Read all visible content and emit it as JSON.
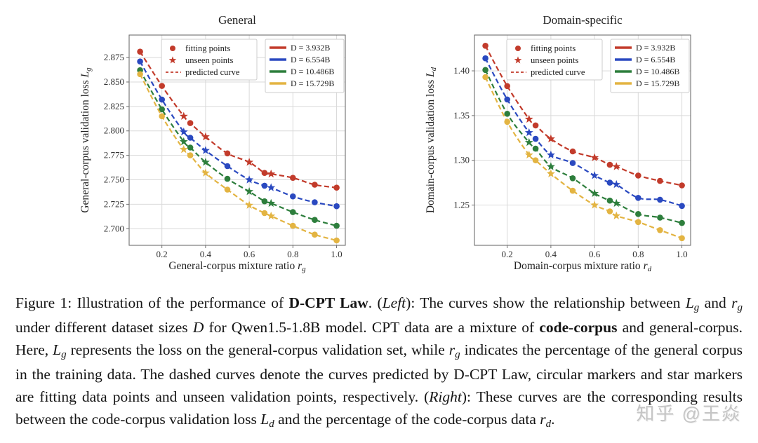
{
  "watermark": {
    "text": "知乎 @王焱"
  },
  "legend": {
    "marker_items": [
      {
        "label": "fitting points",
        "glyph": "circle"
      },
      {
        "label": "unseen points",
        "glyph": "star"
      },
      {
        "label": "predicted curve",
        "glyph": "dashed-line"
      }
    ]
  },
  "chart_data": [
    {
      "type": "line",
      "title": "General",
      "xlabel": {
        "prefix": "General-corpus mixture ratio ",
        "var": "r",
        "sub": "g"
      },
      "ylabel": {
        "prefix": "General-corpus validation loss ",
        "var": "L",
        "sub": "g"
      },
      "xlim": [
        0.05,
        1.04
      ],
      "ylim": [
        2.683,
        2.898
      ],
      "xticks": [
        0.2,
        0.4,
        0.6,
        0.8,
        1.0
      ],
      "yticks": [
        2.7,
        2.725,
        2.75,
        2.775,
        2.8,
        2.825,
        2.85,
        2.875
      ],
      "ytick_decimals": 3,
      "grid": true,
      "legend_position": "top",
      "x": [
        0.1,
        0.2,
        0.3,
        0.33,
        0.4,
        0.5,
        0.6,
        0.67,
        0.7,
        0.8,
        0.9,
        1.0
      ],
      "marker_types": [
        "circle",
        "circle",
        "star",
        "circle",
        "star",
        "circle",
        "star",
        "circle",
        "star",
        "circle",
        "circle",
        "circle"
      ],
      "series": [
        {
          "name": "D = 3.932B",
          "color": "#c23b2b",
          "values": [
            2.881,
            2.846,
            2.815,
            2.808,
            2.794,
            2.777,
            2.768,
            2.757,
            2.756,
            2.752,
            2.745,
            2.742
          ]
        },
        {
          "name": "D = 6.554B",
          "color": "#2a49c0",
          "values": [
            2.871,
            2.832,
            2.799,
            2.793,
            2.78,
            2.764,
            2.75,
            2.744,
            2.742,
            2.733,
            2.727,
            2.723
          ]
        },
        {
          "name": "D = 10.486B",
          "color": "#2d7e3c",
          "values": [
            2.862,
            2.822,
            2.789,
            2.783,
            2.768,
            2.751,
            2.738,
            2.728,
            2.726,
            2.717,
            2.709,
            2.703
          ]
        },
        {
          "name": "D = 15.729B",
          "color": "#e3b442",
          "values": [
            2.858,
            2.815,
            2.781,
            2.775,
            2.757,
            2.74,
            2.724,
            2.716,
            2.713,
            2.703,
            2.694,
            2.688
          ]
        }
      ]
    },
    {
      "type": "line",
      "title": "Domain-specific",
      "xlabel": {
        "prefix": "Domain-corpus mixture ratio ",
        "var": "r",
        "sub": "d"
      },
      "ylabel": {
        "prefix": "Domain-corpus validation loss ",
        "var": "L",
        "sub": "d"
      },
      "xlim": [
        0.05,
        1.04
      ],
      "ylim": [
        1.205,
        1.44
      ],
      "xticks": [
        0.2,
        0.4,
        0.6,
        0.8,
        1.0
      ],
      "yticks": [
        1.25,
        1.3,
        1.35,
        1.4
      ],
      "ytick_decimals": 2,
      "grid": true,
      "legend_position": "top",
      "x": [
        0.1,
        0.2,
        0.3,
        0.33,
        0.4,
        0.5,
        0.6,
        0.67,
        0.7,
        0.8,
        0.9,
        1.0
      ],
      "marker_types": [
        "circle",
        "circle",
        "star",
        "circle",
        "star",
        "circle",
        "star",
        "circle",
        "star",
        "circle",
        "circle",
        "circle"
      ],
      "series": [
        {
          "name": "D = 3.932B",
          "color": "#c23b2b",
          "values": [
            1.428,
            1.383,
            1.346,
            1.339,
            1.324,
            1.31,
            1.303,
            1.295,
            1.293,
            1.283,
            1.277,
            1.272
          ]
        },
        {
          "name": "D = 6.554B",
          "color": "#2a49c0",
          "values": [
            1.414,
            1.368,
            1.331,
            1.324,
            1.306,
            1.297,
            1.283,
            1.275,
            1.273,
            1.258,
            1.256,
            1.249
          ]
        },
        {
          "name": "D = 10.486B",
          "color": "#2d7e3c",
          "values": [
            1.401,
            1.352,
            1.32,
            1.313,
            1.293,
            1.28,
            1.263,
            1.255,
            1.252,
            1.24,
            1.236,
            1.23
          ]
        },
        {
          "name": "D = 15.729B",
          "color": "#e3b442",
          "values": [
            1.393,
            1.343,
            1.306,
            1.3,
            1.285,
            1.266,
            1.25,
            1.243,
            1.238,
            1.231,
            1.222,
            1.213
          ]
        }
      ]
    }
  ],
  "caption": {
    "segments": [
      {
        "text": "Figure 1: Illustration of the performance of "
      },
      {
        "text": "D-CPT Law",
        "bold": true
      },
      {
        "text": ". ("
      },
      {
        "text": "Left",
        "italic": true
      },
      {
        "text": "): The curves show the relationship between "
      },
      {
        "var": "L",
        "sub": "g"
      },
      {
        "text": " and "
      },
      {
        "var": "r",
        "sub": "g"
      },
      {
        "text": " under different dataset sizes "
      },
      {
        "var": "D"
      },
      {
        "text": " for Qwen1.5-1.8B model. CPT data are a mixture of "
      },
      {
        "text": "code-corpus",
        "bold": true
      },
      {
        "text": " and general-corpus. Here, "
      },
      {
        "var": "L",
        "sub": "g"
      },
      {
        "text": " represents the loss on the general-corpus validation set, while "
      },
      {
        "var": "r",
        "sub": "g"
      },
      {
        "text": " indicates the percentage of the general corpus in the training data. The dashed curves denote the curves predicted by D-CPT Law, circular markers and star markers are fitting data points and unseen validation points, respectively. ("
      },
      {
        "text": "Right",
        "italic": true
      },
      {
        "text": "): These curves are the corresponding results between the code-corpus validation loss "
      },
      {
        "var": "L",
        "sub": "d"
      },
      {
        "text": " and the percentage of the code-corpus data "
      },
      {
        "var": "r",
        "sub": "d"
      },
      {
        "text": "."
      }
    ]
  }
}
